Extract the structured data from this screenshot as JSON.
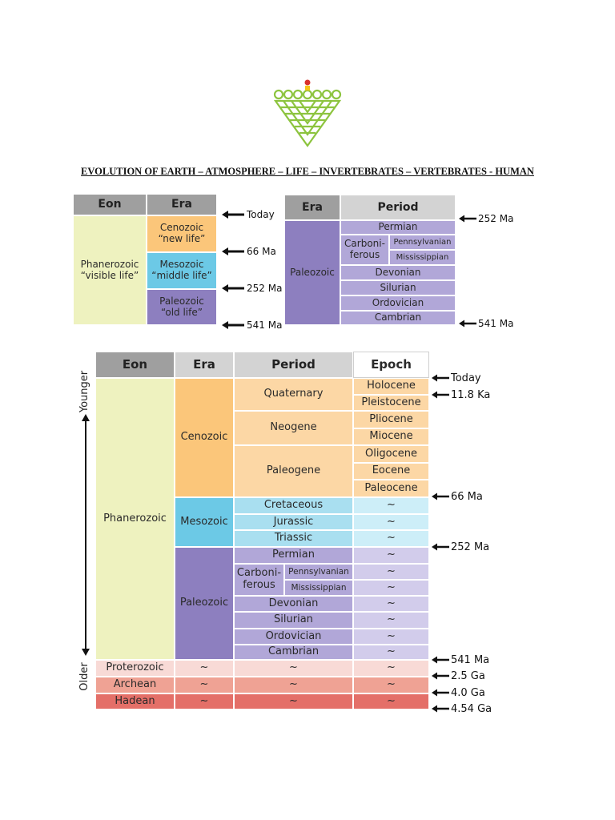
{
  "document": {
    "title": "EVOLUTION OF EARTH – ATMOSPHERE – LIFE – INVERTEBRATES – VERTEBRATES - HUMAN",
    "logo": {
      "icon": "green-triangle-emblem-icon",
      "colors": {
        "green": "#8dc43f",
        "red": "#d9302b",
        "yellow": "#f5c518"
      }
    }
  },
  "colors": {
    "header": "#9f9f9f",
    "header_light": "#d3d3d3",
    "phanerozoic": "#eef2bf",
    "cenozoic": "#fbc67a",
    "cenozoic_light": "#fcd7a5",
    "mesozoic": "#6cc9e6",
    "mesozoic_light": "#a9dff0",
    "paleozoic": "#8d7fbf",
    "paleozoic_light": "#b1a7d8",
    "paleozoic_lighter": "#d2cceb",
    "proterozoic": "#f8dad6",
    "archean": "#efa294",
    "hadean": "#e46f68"
  },
  "table1": {
    "headers": {
      "eon": "Eon",
      "era": "Era"
    },
    "eon": "Phanerozoic\n“visible life”",
    "eras": [
      "Cenozoic\n“new life”",
      "Mesozoic\n“middle life”",
      "Paleozoic\n“old life”"
    ],
    "markers": [
      "Today",
      "66 Ma",
      "252 Ma",
      "541 Ma"
    ]
  },
  "table2": {
    "headers": {
      "era": "Era",
      "period": "Period"
    },
    "era": "Paleozoic",
    "periods": {
      "permian": "Permian",
      "carboniferous": "Carboni-\nferous",
      "pennsylvanian": "Pennsylvanian",
      "mississippian": "Mississippian",
      "devonian": "Devonian",
      "silurian": "Silurian",
      "ordovician": "Ordovician",
      "cambrian": "Cambrian"
    },
    "markers": [
      "252 Ma",
      "541 Ma"
    ]
  },
  "table3": {
    "headers": {
      "eon": "Eon",
      "era": "Era",
      "period": "Period",
      "epoch": "Epoch"
    },
    "side_labels": {
      "top": "Younger",
      "bottom": "Older"
    },
    "eons": {
      "phanerozoic": "Phanerozoic",
      "proterozoic": "Proterozoic",
      "archean": "Archean",
      "hadean": "Hadean"
    },
    "eras": {
      "cenozoic": "Cenozoic",
      "mesozoic": "Mesozoic",
      "paleozoic": "Paleozoic"
    },
    "periods": {
      "quaternary": "Quaternary",
      "neogene": "Neogene",
      "paleogene": "Paleogene",
      "cretaceous": "Cretaceous",
      "jurassic": "Jurassic",
      "triassic": "Triassic",
      "permian": "Permian",
      "carboniferous": "Carboni-\nferous",
      "pennsylvanian": "Pennsylvanian",
      "mississippian": "Mississippian",
      "devonian": "Devonian",
      "silurian": "Silurian",
      "ordovician": "Ordovician",
      "cambrian": "Cambrian"
    },
    "epochs": {
      "holocene": "Holocene",
      "pleistocene": "Pleistocene",
      "pliocene": "Pliocene",
      "miocene": "Miocene",
      "oligocene": "Oligocene",
      "eocene": "Eocene",
      "paleocene": "Paleocene"
    },
    "tilde": "~",
    "markers": [
      "Today",
      "11.8 Ka",
      "66 Ma",
      "252 Ma",
      "541 Ma",
      "2.5 Ga",
      "4.0 Ga",
      "4.54 Ga"
    ]
  }
}
